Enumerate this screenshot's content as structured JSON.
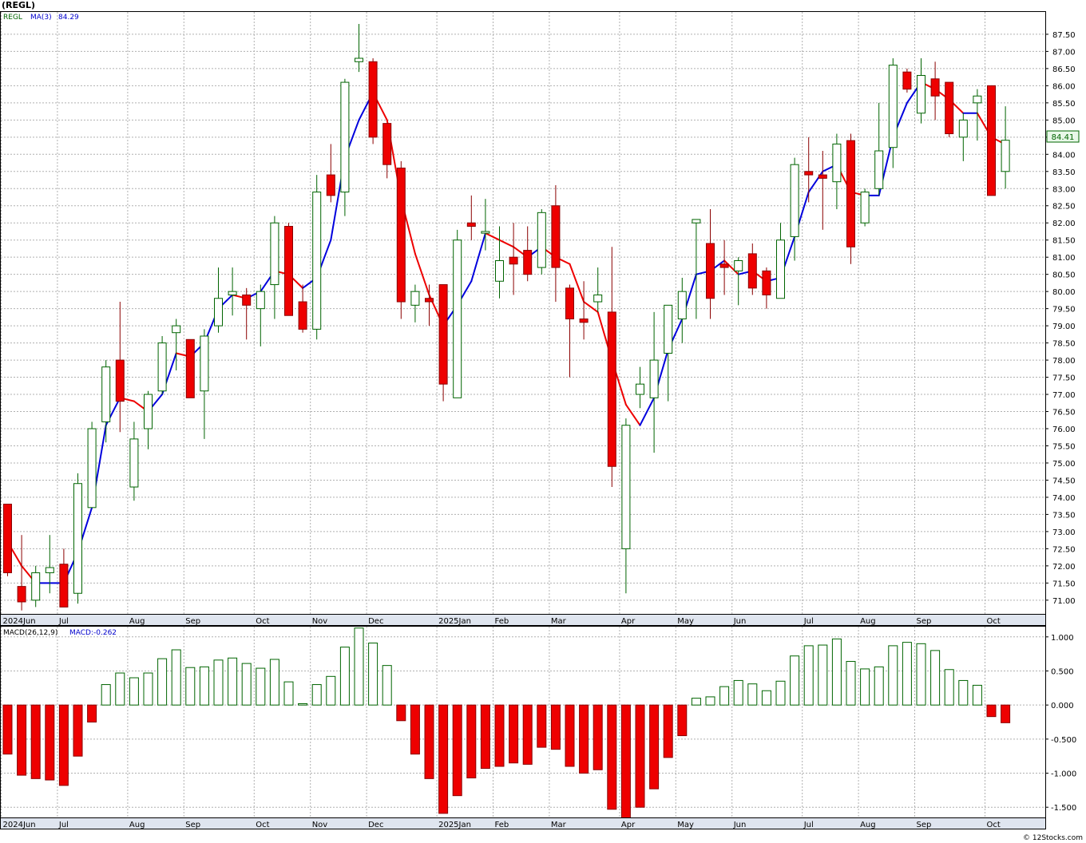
{
  "chart_data": [
    {
      "type": "candlestick",
      "symbol": "(REGL)",
      "legend": [
        {
          "label": "REGL",
          "color": "#006400"
        },
        {
          "label": "MA(3)",
          "color": "#0000cc"
        },
        {
          "label": "84.29",
          "color": "#0000cc"
        }
      ],
      "last_price_label": "84.41",
      "ylim": [
        70.6,
        88.15
      ],
      "y_ticks": [
        "71.00",
        "71.50",
        "72.00",
        "72.50",
        "73.00",
        "73.50",
        "74.00",
        "74.50",
        "75.00",
        "75.50",
        "76.00",
        "76.50",
        "77.00",
        "77.50",
        "78.00",
        "78.50",
        "79.00",
        "79.50",
        "80.00",
        "80.50",
        "81.00",
        "81.50",
        "82.00",
        "82.50",
        "83.00",
        "83.50",
        "84.00",
        "84.50",
        "85.00",
        "85.50",
        "86.00",
        "86.50",
        "87.00",
        "87.50"
      ],
      "x_axis_labels": [
        {
          "label": "2024Jun",
          "week": 0
        },
        {
          "label": "Jul",
          "week": 4
        },
        {
          "label": "Aug",
          "week": 9
        },
        {
          "label": "Sep",
          "week": 13
        },
        {
          "label": "Oct",
          "week": 18
        },
        {
          "label": "Nov",
          "week": 22
        },
        {
          "label": "Dec",
          "week": 26
        },
        {
          "label": "2025Jan",
          "week": 31
        },
        {
          "label": "Feb",
          "week": 35
        },
        {
          "label": "Mar",
          "week": 39
        },
        {
          "label": "Apr",
          "week": 44
        },
        {
          "label": "May",
          "week": 48
        },
        {
          "label": "Jun",
          "week": 52
        },
        {
          "label": "Jul",
          "week": 57
        },
        {
          "label": "Aug",
          "week": 61
        },
        {
          "label": "Sep",
          "week": 65
        },
        {
          "label": "Oct",
          "week": 70
        }
      ],
      "candles": [
        {
          "o": 73.8,
          "h": 73.8,
          "l": 71.7,
          "c": 71.8
        },
        {
          "o": 71.4,
          "h": 72.9,
          "l": 70.7,
          "c": 70.95
        },
        {
          "o": 71.0,
          "h": 72.0,
          "l": 70.8,
          "c": 71.8
        },
        {
          "o": 71.8,
          "h": 72.9,
          "l": 71.2,
          "c": 71.95
        },
        {
          "o": 72.05,
          "h": 72.5,
          "l": 70.8,
          "c": 70.8
        },
        {
          "o": 71.2,
          "h": 74.7,
          "l": 70.9,
          "c": 74.4
        },
        {
          "o": 73.7,
          "h": 76.2,
          "l": 73.7,
          "c": 76.0
        },
        {
          "o": 76.2,
          "h": 78.0,
          "l": 75.6,
          "c": 77.8
        },
        {
          "o": 78.0,
          "h": 79.7,
          "l": 75.9,
          "c": 76.8
        },
        {
          "o": 74.3,
          "h": 76.2,
          "l": 73.9,
          "c": 75.7
        },
        {
          "o": 76.0,
          "h": 77.1,
          "l": 75.4,
          "c": 77.0
        },
        {
          "o": 77.1,
          "h": 78.7,
          "l": 77.0,
          "c": 78.5
        },
        {
          "o": 78.8,
          "h": 79.2,
          "l": 77.7,
          "c": 79.0
        },
        {
          "o": 78.6,
          "h": 78.6,
          "l": 76.9,
          "c": 76.9
        },
        {
          "o": 77.1,
          "h": 78.9,
          "l": 75.7,
          "c": 78.7
        },
        {
          "o": 79.0,
          "h": 80.7,
          "l": 78.8,
          "c": 79.8
        },
        {
          "o": 79.9,
          "h": 80.7,
          "l": 79.3,
          "c": 80.0
        },
        {
          "o": 79.9,
          "h": 80.1,
          "l": 78.6,
          "c": 79.6
        },
        {
          "o": 79.5,
          "h": 80.2,
          "l": 78.4,
          "c": 80.0
        },
        {
          "o": 80.2,
          "h": 82.2,
          "l": 79.2,
          "c": 82.0
        },
        {
          "o": 81.9,
          "h": 82.0,
          "l": 79.3,
          "c": 79.3
        },
        {
          "o": 79.7,
          "h": 80.2,
          "l": 78.8,
          "c": 78.9
        },
        {
          "o": 78.9,
          "h": 83.4,
          "l": 78.6,
          "c": 82.9
        },
        {
          "o": 83.4,
          "h": 84.3,
          "l": 82.6,
          "c": 82.8
        },
        {
          "o": 82.9,
          "h": 86.2,
          "l": 82.2,
          "c": 86.1
        },
        {
          "o": 86.7,
          "h": 87.8,
          "l": 86.4,
          "c": 86.8
        },
        {
          "o": 86.7,
          "h": 86.8,
          "l": 84.3,
          "c": 84.5
        },
        {
          "o": 84.9,
          "h": 84.9,
          "l": 83.3,
          "c": 83.7
        },
        {
          "o": 83.6,
          "h": 83.8,
          "l": 79.2,
          "c": 79.7
        },
        {
          "o": 79.6,
          "h": 80.2,
          "l": 79.1,
          "c": 80.0
        },
        {
          "o": 79.8,
          "h": 80.2,
          "l": 79.0,
          "c": 79.7
        },
        {
          "o": 80.2,
          "h": 80.2,
          "l": 76.8,
          "c": 77.3
        },
        {
          "o": 76.9,
          "h": 81.8,
          "l": 76.9,
          "c": 81.5
        },
        {
          "o": 82.0,
          "h": 82.8,
          "l": 81.5,
          "c": 81.9
        },
        {
          "o": 81.7,
          "h": 82.7,
          "l": 81.2,
          "c": 81.75
        },
        {
          "o": 80.3,
          "h": 81.9,
          "l": 79.8,
          "c": 80.9
        },
        {
          "o": 81.0,
          "h": 82.0,
          "l": 79.9,
          "c": 80.8
        },
        {
          "o": 81.2,
          "h": 81.9,
          "l": 80.3,
          "c": 80.5
        },
        {
          "o": 80.7,
          "h": 82.4,
          "l": 80.5,
          "c": 82.3
        },
        {
          "o": 82.5,
          "h": 83.1,
          "l": 79.7,
          "c": 80.7
        },
        {
          "o": 80.1,
          "h": 80.2,
          "l": 77.5,
          "c": 79.2
        },
        {
          "o": 79.2,
          "h": 80.3,
          "l": 78.6,
          "c": 79.1
        },
        {
          "o": 79.7,
          "h": 80.7,
          "l": 79.4,
          "c": 79.9
        },
        {
          "o": 79.4,
          "h": 81.3,
          "l": 74.3,
          "c": 74.9
        },
        {
          "o": 72.5,
          "h": 76.3,
          "l": 71.2,
          "c": 76.1
        },
        {
          "o": 77.0,
          "h": 77.8,
          "l": 76.6,
          "c": 77.3
        },
        {
          "o": 76.9,
          "h": 79.4,
          "l": 75.3,
          "c": 78.0
        },
        {
          "o": 78.2,
          "h": 79.5,
          "l": 76.8,
          "c": 79.6
        },
        {
          "o": 79.2,
          "h": 80.4,
          "l": 78.5,
          "c": 80.0
        },
        {
          "o": 82.0,
          "h": 82.1,
          "l": 79.2,
          "c": 82.1
        },
        {
          "o": 81.4,
          "h": 82.4,
          "l": 79.2,
          "c": 79.8
        },
        {
          "o": 80.8,
          "h": 81.5,
          "l": 79.9,
          "c": 80.7
        },
        {
          "o": 80.6,
          "h": 81.0,
          "l": 79.6,
          "c": 80.9
        },
        {
          "o": 81.1,
          "h": 81.4,
          "l": 79.9,
          "c": 80.1
        },
        {
          "o": 80.6,
          "h": 80.7,
          "l": 79.5,
          "c": 79.9
        },
        {
          "o": 79.8,
          "h": 82.0,
          "l": 79.8,
          "c": 81.5
        },
        {
          "o": 81.6,
          "h": 83.9,
          "l": 80.9,
          "c": 83.7
        },
        {
          "o": 83.5,
          "h": 84.5,
          "l": 82.6,
          "c": 83.4
        },
        {
          "o": 83.4,
          "h": 84.1,
          "l": 81.8,
          "c": 83.3
        },
        {
          "o": 83.2,
          "h": 84.6,
          "l": 82.4,
          "c": 84.3
        },
        {
          "o": 84.4,
          "h": 84.6,
          "l": 80.8,
          "c": 81.3
        },
        {
          "o": 82.0,
          "h": 83.0,
          "l": 81.9,
          "c": 82.9
        },
        {
          "o": 83.0,
          "h": 85.5,
          "l": 82.8,
          "c": 84.1
        },
        {
          "o": 84.2,
          "h": 86.8,
          "l": 83.6,
          "c": 86.6
        },
        {
          "o": 86.4,
          "h": 86.5,
          "l": 85.8,
          "c": 85.9
        },
        {
          "o": 85.2,
          "h": 86.8,
          "l": 84.9,
          "c": 86.3
        },
        {
          "o": 86.2,
          "h": 86.7,
          "l": 85.0,
          "c": 85.7
        },
        {
          "o": 86.1,
          "h": 86.1,
          "l": 84.5,
          "c": 84.6
        },
        {
          "o": 84.5,
          "h": 85.2,
          "l": 83.8,
          "c": 85.0
        },
        {
          "o": 85.5,
          "h": 85.9,
          "l": 84.4,
          "c": 85.7
        },
        {
          "o": 86.0,
          "h": 86.0,
          "l": 82.8,
          "c": 82.8
        },
        {
          "o": 83.5,
          "h": 85.4,
          "l": 83.0,
          "c": 84.41
        }
      ],
      "ma3": [
        72.7,
        72.0,
        71.5,
        71.5,
        71.5,
        72.4,
        73.7,
        76.1,
        76.9,
        76.8,
        76.5,
        77.0,
        78.2,
        78.1,
        78.5,
        79.5,
        79.9,
        79.8,
        80.0,
        80.6,
        80.5,
        80.1,
        80.4,
        81.5,
        83.9,
        85.0,
        85.8,
        85.0,
        82.7,
        81.1,
        79.9,
        79.0,
        79.6,
        80.3,
        81.7,
        81.5,
        81.3,
        81.0,
        81.3,
        81.0,
        80.8,
        79.7,
        79.4,
        78.0,
        76.7,
        76.1,
        76.9,
        78.3,
        79.2,
        80.5,
        80.6,
        80.9,
        80.5,
        80.6,
        80.3,
        80.4,
        81.6,
        82.9,
        83.5,
        83.7,
        82.9,
        82.8,
        82.8,
        84.5,
        85.5,
        86.1,
        85.9,
        85.6,
        85.2,
        85.2,
        84.5,
        84.29
      ],
      "ma3_final_label": "84.29"
    },
    {
      "type": "bar",
      "name": "MACD",
      "legend": [
        {
          "label": "MACD(26,12,9)",
          "color": "#000000"
        },
        {
          "label": "MACD:-0.262",
          "color": "#0000cc"
        }
      ],
      "ylim": [
        -1.65,
        1.15
      ],
      "y_ticks": [
        "1.000",
        "0.500",
        "0.000",
        "-0.500",
        "-1.000",
        "-1.500"
      ],
      "values": [
        -0.72,
        -1.03,
        -1.08,
        -1.1,
        -1.18,
        -0.75,
        -0.25,
        0.3,
        0.47,
        0.4,
        0.47,
        0.68,
        0.81,
        0.55,
        0.56,
        0.66,
        0.69,
        0.61,
        0.54,
        0.67,
        0.34,
        0.02,
        0.3,
        0.42,
        0.85,
        1.13,
        0.91,
        0.58,
        -0.23,
        -0.72,
        -1.08,
        -1.59,
        -1.33,
        -1.07,
        -0.93,
        -0.9,
        -0.85,
        -0.87,
        -0.62,
        -0.65,
        -0.9,
        -1.0,
        -0.95,
        -1.53,
        -1.67,
        -1.5,
        -1.23,
        -0.77,
        -0.45,
        0.1,
        0.12,
        0.27,
        0.36,
        0.31,
        0.21,
        0.35,
        0.72,
        0.87,
        0.88,
        0.97,
        0.64,
        0.53,
        0.56,
        0.87,
        0.92,
        0.9,
        0.8,
        0.52,
        0.36,
        0.29,
        -0.17,
        -0.26
      ]
    }
  ],
  "credit": "© 12Stocks.com"
}
